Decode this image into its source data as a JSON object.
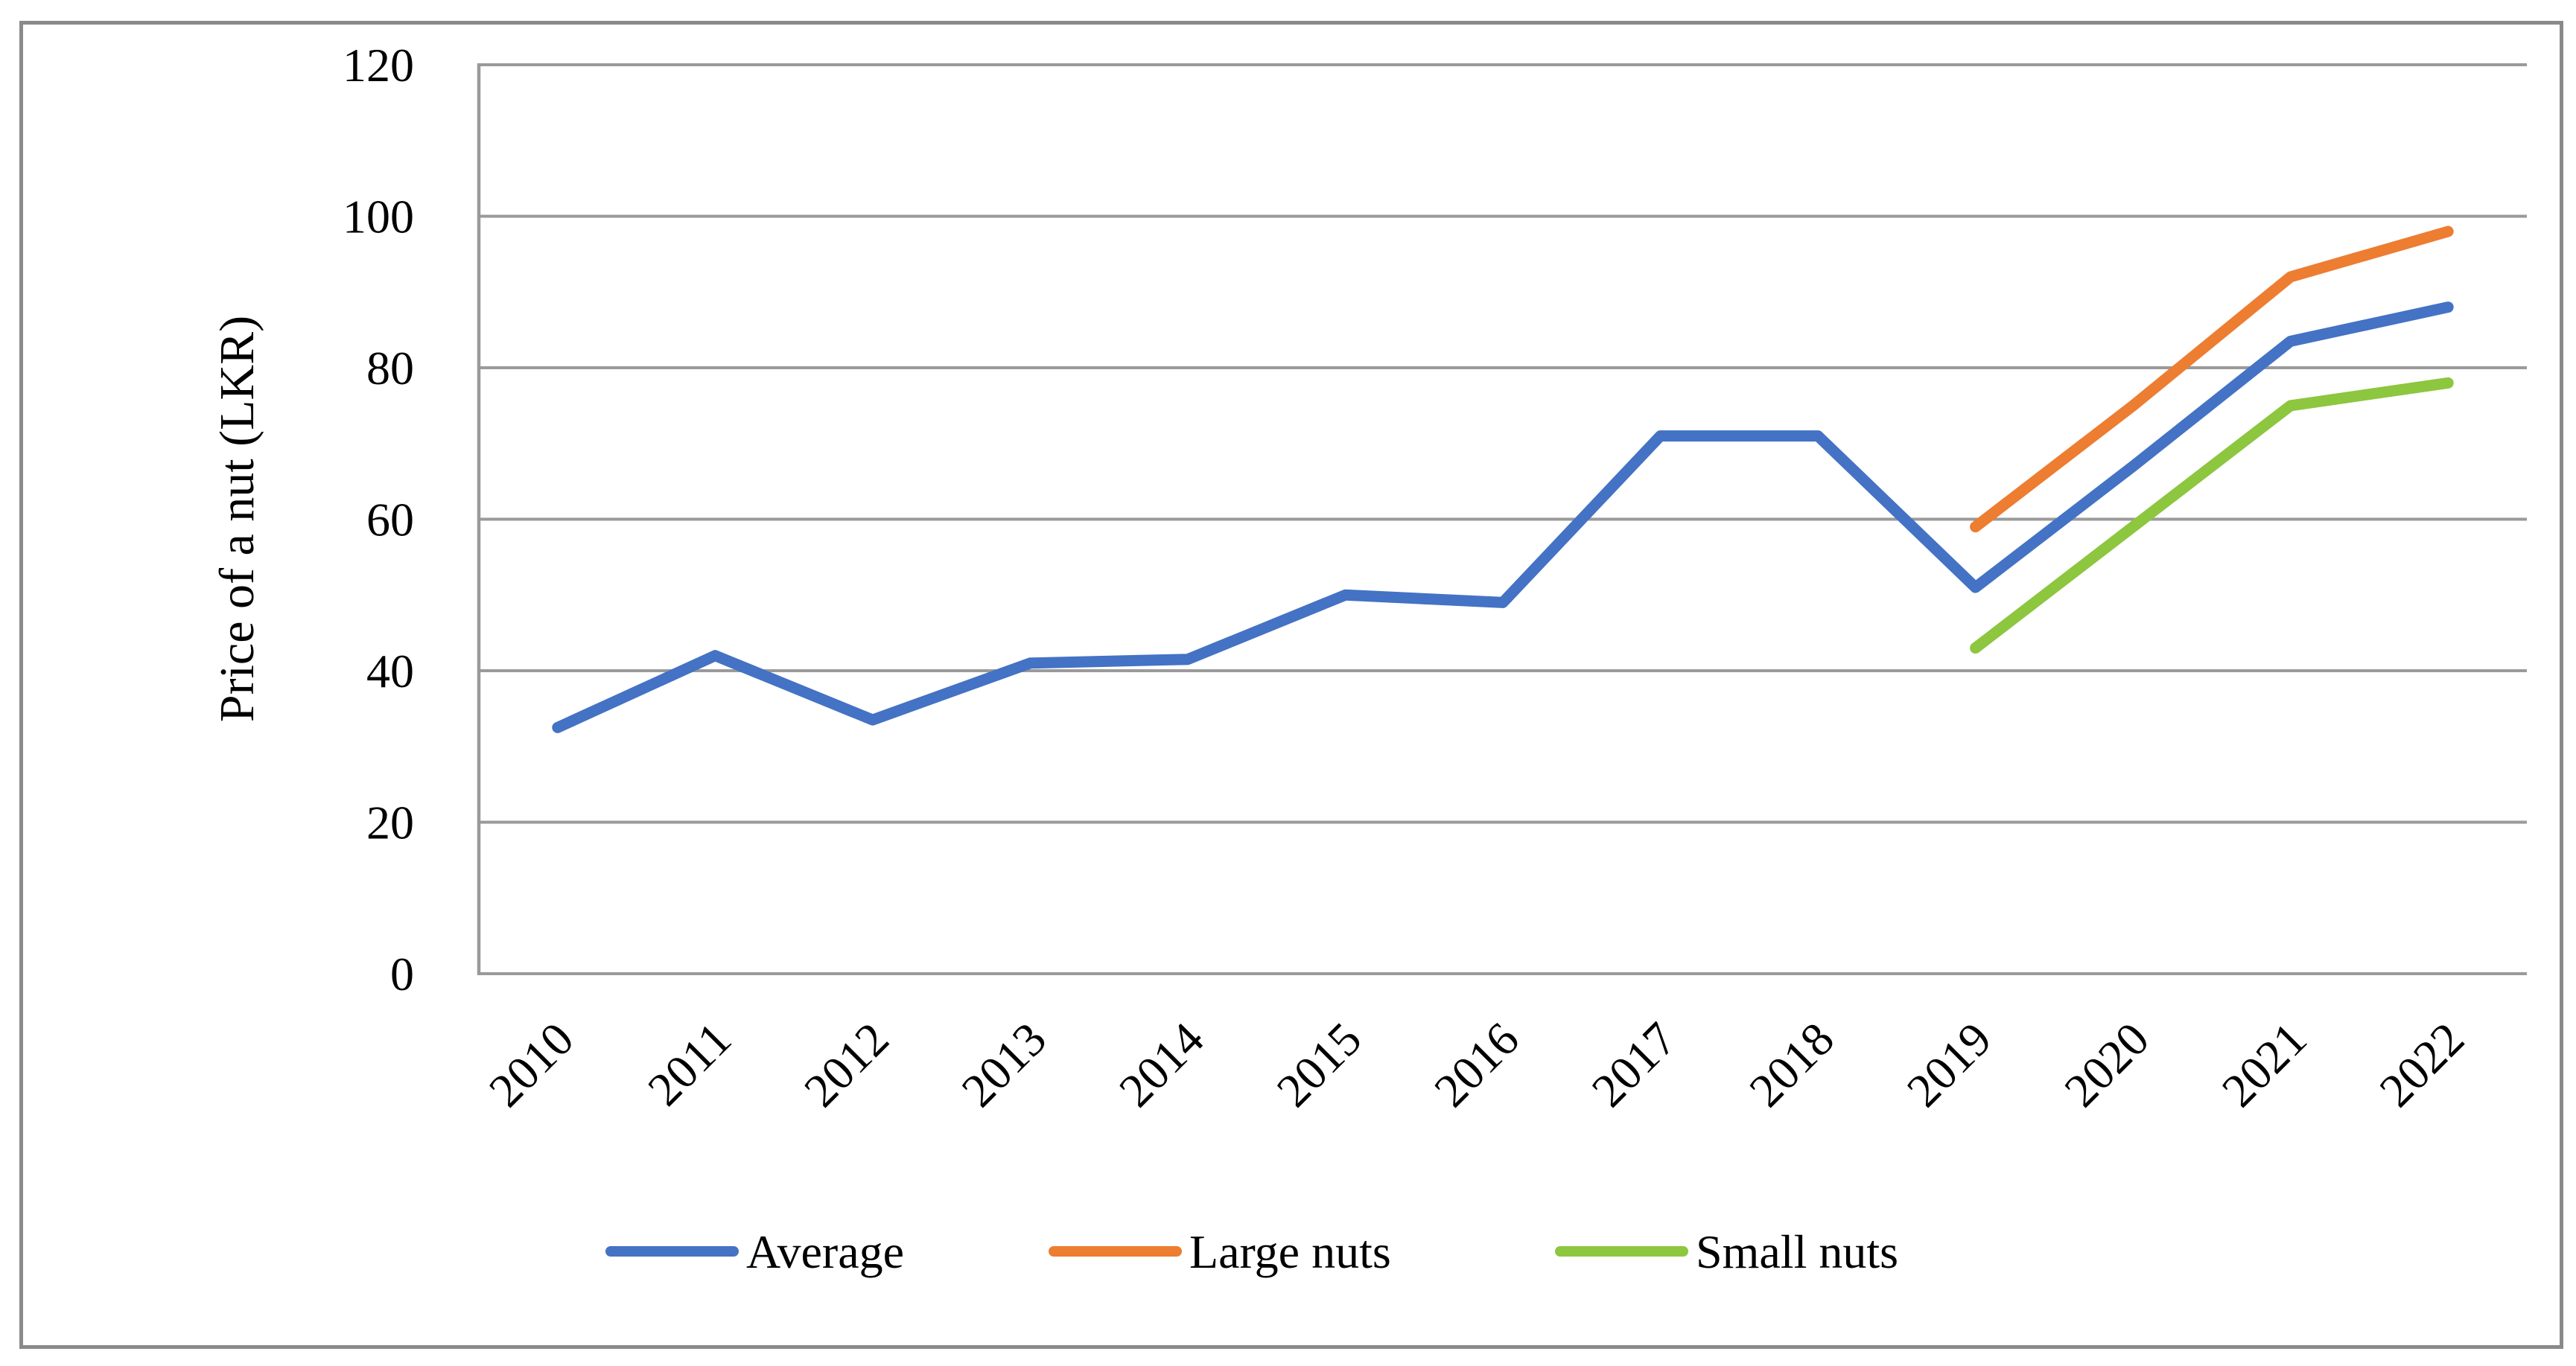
{
  "figure": {
    "background": "#FFFFFF",
    "border_color": "#8A8A8A"
  },
  "chart_data": {
    "type": "line",
    "title": "",
    "xlabel": "",
    "ylabel": "Price of a nut (LKR)",
    "categories": [
      "2010",
      "2011",
      "2012",
      "2013",
      "2014",
      "2015",
      "2016",
      "2017",
      "2018",
      "2019",
      "2020",
      "2021",
      "2022"
    ],
    "series": [
      {
        "name": "Average",
        "color": "#4472C4",
        "values": [
          32.5,
          42,
          33.5,
          41,
          41.5,
          50,
          49,
          71,
          71,
          51,
          67,
          83.5,
          88
        ]
      },
      {
        "name": "Large nuts",
        "color": "#ED7D31",
        "values": [
          null,
          null,
          null,
          null,
          null,
          null,
          null,
          null,
          null,
          59,
          75,
          92,
          98
        ]
      },
      {
        "name": "Small nuts",
        "color": "#8DC63F",
        "values": [
          null,
          null,
          null,
          null,
          null,
          null,
          null,
          null,
          null,
          43,
          59,
          75,
          78
        ]
      }
    ],
    "ylim": [
      0,
      120
    ],
    "ytick_step": 20,
    "yticks": [
      "0",
      "20",
      "40",
      "60",
      "80",
      "100",
      "120"
    ],
    "grid": "horizontal",
    "gridline_color": "#9A9A9A",
    "axis_line_color": "#9A9A9A",
    "legend_position": "bottom",
    "x_tick_rotation": -45
  }
}
